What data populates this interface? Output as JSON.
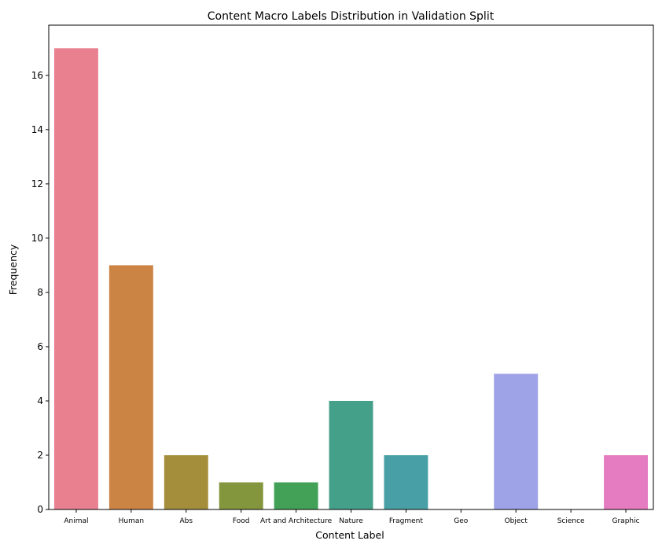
{
  "chart_data": {
    "type": "bar",
    "title": "Content Macro Labels Distribution in Validation Split",
    "xlabel": "Content Label",
    "ylabel": "Frequency",
    "categories": [
      "Animal",
      "Human",
      "Abs",
      "Food",
      "Art and Architecture",
      "Nature",
      "Fragment",
      "Geo",
      "Object",
      "Science",
      "Graphic"
    ],
    "values": [
      17,
      9,
      2,
      1,
      1,
      4,
      2,
      0,
      5,
      0,
      2
    ],
    "colors": [
      "#e8808f",
      "#cb8444",
      "#a48e3c",
      "#84963d",
      "#43a157",
      "#45a08a",
      "#48a0a6",
      "#4c9ec3",
      "#9ea2e6",
      "#d57ce5",
      "#e57bc0"
    ],
    "ylim": [
      0,
      17.85
    ],
    "yticks": [
      0,
      2,
      4,
      6,
      8,
      10,
      12,
      14,
      16
    ],
    "grid": false,
    "legend": "none"
  }
}
